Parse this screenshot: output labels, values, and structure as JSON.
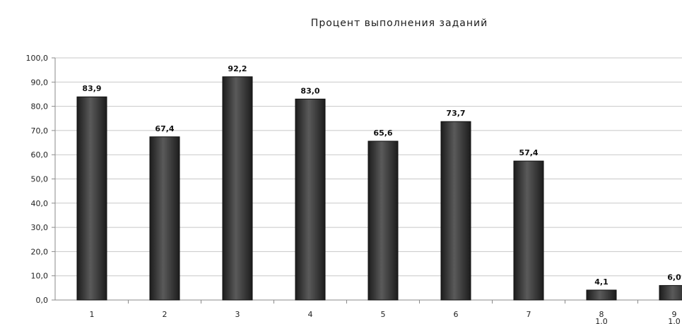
{
  "chart_data": {
    "type": "bar",
    "title": "Процент выполнения заданий",
    "xlabel": "",
    "ylabel": "",
    "categories": [
      "1",
      "2",
      "3",
      "4",
      "5",
      "6",
      "7",
      "8",
      "9"
    ],
    "category_sublabels": [
      "",
      "",
      "",
      "",
      "",
      "",
      "",
      "1.0",
      "1.0"
    ],
    "values": [
      83.9,
      67.4,
      92.2,
      83.0,
      65.6,
      73.7,
      57.4,
      4.1,
      6.0
    ],
    "value_labels": [
      "83,9",
      "67,4",
      "92,2",
      "83,0",
      "65,6",
      "73,7",
      "57,4",
      "4,1",
      "6,0"
    ],
    "ylim": [
      0,
      100
    ],
    "yticks": [
      0,
      10,
      20,
      30,
      40,
      50,
      60,
      70,
      80,
      90,
      100
    ],
    "ytick_labels": [
      "0,0",
      "10,0",
      "20,0",
      "30,0",
      "40,0",
      "50,0",
      "60,0",
      "70,0",
      "80,0",
      "90,0",
      "100,0"
    ],
    "grid": true,
    "legend": "none",
    "colors": {
      "bar": "#2e2e2e",
      "bar_highlight": "#6a6a6a",
      "grid": "#c8c8c8",
      "axis": "#8a8a8a"
    }
  }
}
